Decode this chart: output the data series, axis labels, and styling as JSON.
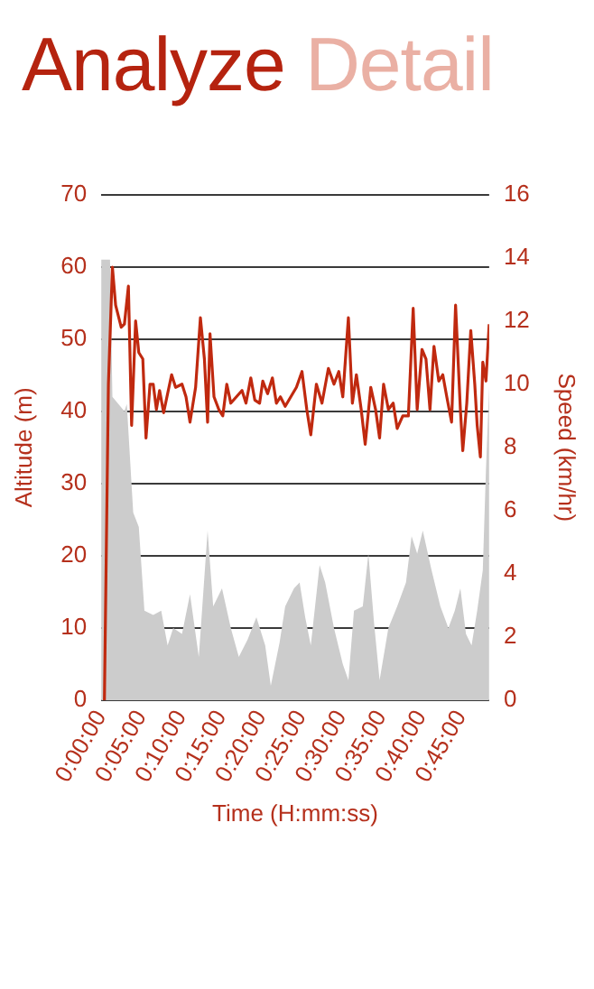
{
  "chart_data": {
    "type": "area",
    "title": "Analyze Detail",
    "xlabel": "Time (H:mm:ss)",
    "ylabel": "Altitude (m)",
    "y2label": "Speed (km/hr)",
    "xlim": [
      0,
      48.5
    ],
    "xticks": [
      {
        "value": 0,
        "label": "0:00:00"
      },
      {
        "value": 5,
        "label": "0:05:00"
      },
      {
        "value": 10,
        "label": "0:10:00"
      },
      {
        "value": 15,
        "label": "0:15:00"
      },
      {
        "value": 20,
        "label": "0:20:00"
      },
      {
        "value": 25,
        "label": "0:25:00"
      },
      {
        "value": 30,
        "label": "0:30:00"
      },
      {
        "value": 35,
        "label": "0:35:00"
      },
      {
        "value": 40,
        "label": "0:40:00"
      },
      {
        "value": 45,
        "label": "0:45:00"
      }
    ],
    "ylim": [
      0,
      70
    ],
    "yticks": [
      0,
      10,
      20,
      30,
      40,
      50,
      60,
      70
    ],
    "y2lim": [
      0,
      16
    ],
    "y2ticks": [
      0,
      2,
      4,
      6,
      8,
      10,
      12,
      14,
      16
    ],
    "grid": "y",
    "legend": false,
    "marker": "none",
    "series": [
      {
        "color": "#cccccc",
        "x": [
          0,
          1.1,
          1.4,
          2.9,
          3.2,
          4.0,
          4.7,
          5.4,
          6.5,
          7.5,
          8.3,
          9.0,
          10.1,
          11.1,
          12.2,
          13.3,
          14.0,
          15.1,
          16.2,
          17.2,
          18.3,
          19.4,
          20.5,
          21.2,
          22.3,
          23.0,
          24.1,
          24.8,
          25.5,
          26.2,
          27.3,
          28.0,
          29.1,
          30.2,
          30.9,
          31.6,
          32.7,
          33.4,
          34.1,
          34.8,
          35.9,
          37.0,
          38.1,
          38.8,
          39.5,
          40.2,
          41.3,
          42.4,
          43.4,
          44.2,
          44.9,
          45.6,
          46.3,
          47.0,
          47.7,
          48.1,
          48.5
        ],
        "values": [
          61,
          61,
          42,
          40,
          41,
          26,
          24,
          12.4,
          11.8,
          12.4,
          7.6,
          10,
          9.2,
          14.7,
          6,
          23.5,
          13,
          15.5,
          10,
          6,
          8.4,
          11.5,
          7.6,
          2,
          8,
          13,
          15.5,
          16.3,
          11.5,
          7.6,
          18.7,
          16.3,
          10,
          5,
          2.8,
          12.4,
          13,
          20.3,
          10.8,
          2.8,
          10,
          13,
          16.3,
          22.7,
          20.3,
          23.5,
          18,
          13,
          10,
          12.4,
          15.5,
          9.2,
          7.6,
          12.4,
          18,
          32,
          43.5
        ]
      },
      {
        "type": "line",
        "axis": "y2",
        "color": "#c0290f",
        "x": [
          0.4,
          0.9,
          1.4,
          1.8,
          2.5,
          2.9,
          3.4,
          3.8,
          4.3,
          4.7,
          5.2,
          5.6,
          6.1,
          6.5,
          6.9,
          7.3,
          7.8,
          8.3,
          8.8,
          9.3,
          10.1,
          10.6,
          11.1,
          11.8,
          12.4,
          12.9,
          13.3,
          13.6,
          14.1,
          14.7,
          15.2,
          15.7,
          16.2,
          16.9,
          17.6,
          18.1,
          18.7,
          19.2,
          19.8,
          20.2,
          20.8,
          21.4,
          21.9,
          22.4,
          23.0,
          23.7,
          24.4,
          25.1,
          25.7,
          26.2,
          26.9,
          27.6,
          28.4,
          29.1,
          29.7,
          30.2,
          30.9,
          31.4,
          31.9,
          32.5,
          33.0,
          33.7,
          34.3,
          34.8,
          35.3,
          35.9,
          36.5,
          37.0,
          37.7,
          38.4,
          39.0,
          39.5,
          40.1,
          40.6,
          41.1,
          41.6,
          42.2,
          42.7,
          43.2,
          43.8,
          44.3,
          44.9,
          45.2,
          45.7,
          46.2,
          46.7,
          47.0,
          47.4,
          47.7,
          48.1,
          48.5
        ],
        "values": [
          0,
          10.0,
          13.7,
          12.5,
          11.8,
          11.9,
          13.1,
          8.7,
          12.0,
          11.0,
          10.8,
          8.3,
          10.0,
          10.0,
          9.2,
          9.8,
          9.1,
          9.7,
          10.3,
          9.9,
          10.0,
          9.6,
          8.8,
          9.9,
          12.1,
          10.8,
          8.8,
          11.6,
          9.6,
          9.2,
          9.0,
          10.0,
          9.4,
          9.6,
          9.8,
          9.4,
          10.2,
          9.5,
          9.4,
          10.1,
          9.7,
          10.2,
          9.4,
          9.6,
          9.3,
          9.6,
          9.9,
          10.4,
          9.2,
          8.4,
          10.0,
          9.4,
          10.5,
          10.0,
          10.4,
          9.6,
          12.1,
          9.4,
          10.3,
          9.2,
          8.1,
          9.9,
          9.2,
          8.3,
          10.0,
          9.2,
          9.4,
          8.6,
          9.0,
          9.0,
          12.4,
          9.2,
          11.1,
          10.8,
          9.2,
          11.2,
          10.1,
          10.3,
          9.6,
          8.8,
          12.5,
          9.2,
          7.9,
          9.4,
          11.7,
          10.0,
          8.7,
          7.7,
          10.7,
          10.1,
          11.9
        ]
      }
    ]
  }
}
